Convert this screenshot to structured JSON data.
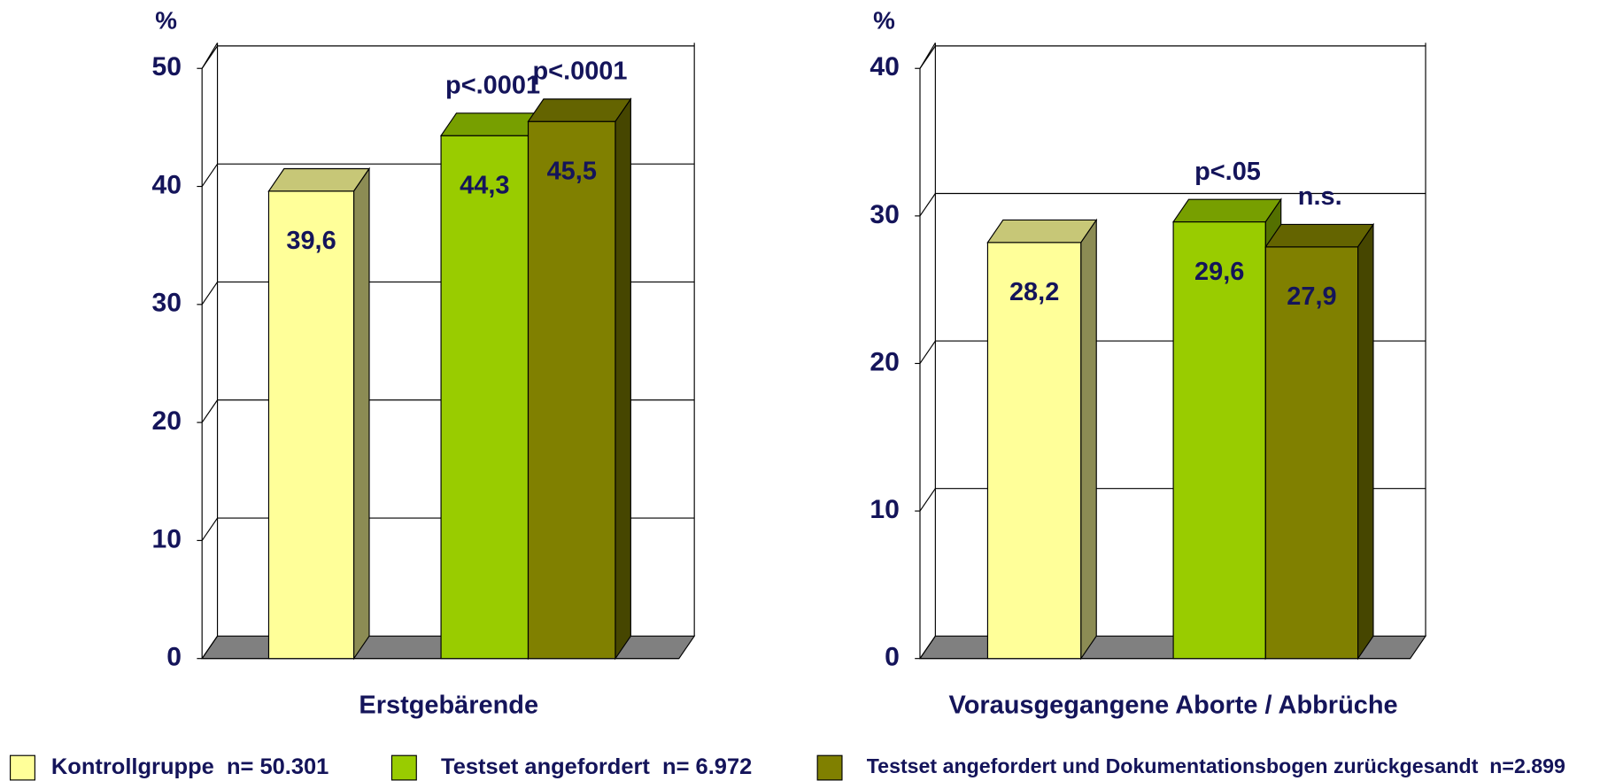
{
  "legend": [
    {
      "name": "Kontrollgruppe  n= 50.301",
      "color": "#ffff99"
    },
    {
      "name": "Testset angefordert  n= 6.972",
      "color": "#99cc00"
    },
    {
      "name": "Testset angefordert und Dokumentationsbogen zurückgesandt  n=2.899",
      "color": "#808000"
    }
  ],
  "chart_data": [
    {
      "type": "bar",
      "title": "Erstgebärende",
      "ylabel": "%",
      "values": [
        39.6,
        44.3,
        45.5
      ],
      "value_labels": [
        "39,6",
        "44,3",
        "45,5"
      ],
      "annotations": [
        null,
        "p<.0001",
        "p<.0001"
      ],
      "ylim": [
        0,
        50
      ],
      "yticks": [
        0,
        10,
        20,
        30,
        40,
        50
      ],
      "grid": true
    },
    {
      "type": "bar",
      "title": "Vorausgegangene Aborte / Abbrüche",
      "ylabel": "%",
      "values": [
        28.2,
        29.6,
        27.9
      ],
      "value_labels": [
        "28,2",
        "29,6",
        "27,9"
      ],
      "annotations": [
        null,
        "p<.05",
        "n.s."
      ],
      "ylim": [
        0,
        40
      ],
      "yticks": [
        0,
        10,
        20,
        30,
        40
      ],
      "grid": true
    }
  ]
}
